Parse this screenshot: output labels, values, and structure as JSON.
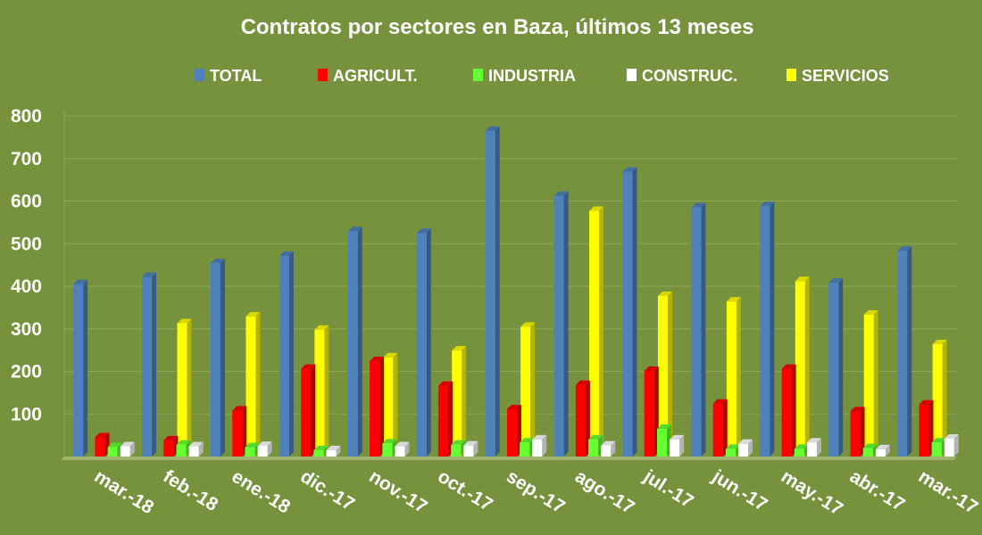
{
  "chart_data": {
    "type": "bar",
    "title": "Contratos por sectores en Baza, últimos 13 meses",
    "categories": [
      "mar.-18",
      "feb.-18",
      "ene.-18",
      "dic.-17",
      "nov.-17",
      "oct.-17",
      "sep.-17",
      "ago.-17",
      "jul.-17",
      "jun.-17",
      "may.-17",
      "abr.-17",
      "mar.-17"
    ],
    "series": [
      {
        "name": "TOTAL",
        "color": "#4f81bd",
        "values": [
          405,
          422,
          454,
          471,
          529,
          525,
          765,
          612,
          669,
          585,
          588,
          408,
          483
        ]
      },
      {
        "name": "AGRICULT.",
        "color": "#ff0000",
        "values": [
          45,
          38,
          108,
          206,
          224,
          166,
          111,
          168,
          201,
          124,
          206,
          106,
          122
        ]
      },
      {
        "name": "INDUSTRIA",
        "color": "#66ff33",
        "values": [
          22,
          28,
          22,
          15,
          31,
          28,
          33,
          40,
          65,
          18,
          18,
          20,
          33
        ]
      },
      {
        "name": "CONSTRUC.",
        "color": "#ffffff",
        "values": [
          24,
          24,
          25,
          15,
          24,
          26,
          40,
          26,
          40,
          30,
          33,
          17,
          42
        ]
      },
      {
        "name": "SERVICIOS",
        "color": "#ffff00",
        "values": [
          313,
          329,
          298,
          233,
          249,
          305,
          577,
          377,
          364,
          412,
          333,
          264,
          285
        ]
      }
    ],
    "ylim": [
      0,
      800
    ],
    "yticks": [
      "100",
      "200",
      "300",
      "400",
      "500",
      "600",
      "700",
      "800"
    ],
    "grid": true,
    "legend_position": "top"
  }
}
